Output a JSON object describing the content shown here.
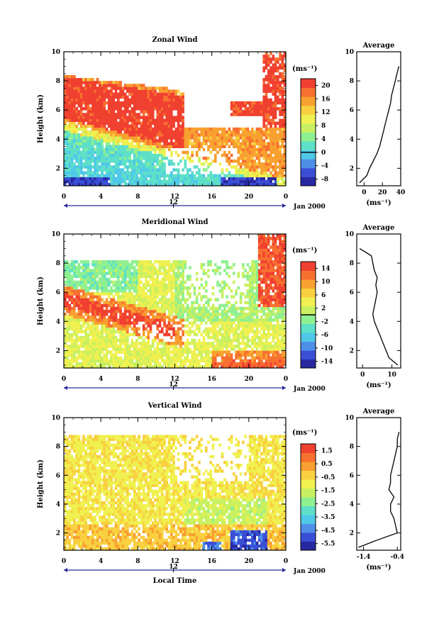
{
  "figure": {
    "x_axis_label": "Local Time",
    "date_label": "Jan 2000",
    "day_marker": "12",
    "x_ticks": [
      "0",
      "4",
      "8",
      "12",
      "16",
      "20",
      "0"
    ],
    "y_ticks": [
      "2",
      "4",
      "6",
      "8",
      "10"
    ],
    "y_label": "Height (km)",
    "avg_title": "Average",
    "unit": "(ms⁻¹)"
  },
  "colors": {
    "palette": [
      "#2828a0",
      "#3a4fd6",
      "#4e8fe8",
      "#4fc8e8",
      "#5ee0c8",
      "#8ef090",
      "#c8f060",
      "#f0f050",
      "#f8d040",
      "#f8a030",
      "#f87030",
      "#f04030"
    ]
  },
  "chart_data": [
    {
      "type": "heatmap",
      "title": "Zonal Wind",
      "xlabel": "",
      "ylabel": "Height (km)",
      "xlim": [
        0,
        24
      ],
      "ylim": [
        0.8,
        10
      ],
      "colorbar_label": "(ms⁻¹)",
      "colorbar_ticks": [
        "20",
        "16",
        "12",
        "8",
        "4",
        "0",
        "-4",
        "-8"
      ],
      "colorbar_range": [
        -10,
        22
      ],
      "contour_level": 0,
      "profile": {
        "title": "Average",
        "xlabel": "(ms⁻¹)",
        "x_ticks": [
          "0",
          "20",
          "40"
        ],
        "xlim": [
          -8,
          40
        ],
        "height": [
          1.0,
          1.5,
          2.0,
          2.5,
          3.0,
          3.5,
          4.0,
          4.5,
          5.0,
          5.5,
          6.0,
          6.5,
          7.0,
          7.5,
          8.0,
          8.5,
          9.0
        ],
        "value": [
          -5,
          3,
          6,
          10,
          14,
          17,
          19,
          21,
          23,
          25,
          27,
          29,
          30,
          32,
          34,
          36,
          38
        ]
      }
    },
    {
      "type": "heatmap",
      "title": "Meridional Wind",
      "xlabel": "",
      "ylabel": "Height (km)",
      "xlim": [
        0,
        24
      ],
      "ylim": [
        0.8,
        10
      ],
      "colorbar_label": "(ms⁻¹)",
      "colorbar_ticks": [
        "14",
        "10",
        "6",
        "2",
        "-2",
        "-6",
        "-10",
        "-14"
      ],
      "colorbar_range": [
        -16,
        16
      ],
      "contour_level": 0,
      "profile": {
        "title": "Average",
        "xlabel": "(ms⁻¹)",
        "x_ticks": [
          "0",
          "10"
        ],
        "xlim": [
          -2,
          13
        ],
        "height": [
          1.0,
          1.5,
          2.0,
          2.5,
          3.0,
          3.5,
          4.0,
          4.5,
          5.0,
          5.5,
          6.0,
          6.5,
          7.0,
          7.5,
          8.0,
          8.5,
          9.0
        ],
        "value": [
          12,
          9,
          8,
          7,
          6,
          5,
          4,
          3.5,
          4,
          4.5,
          5,
          4.5,
          5,
          4,
          3.5,
          3,
          -1
        ]
      }
    },
    {
      "type": "heatmap",
      "title": "Vertical Wind",
      "xlabel": "Local Time",
      "ylabel": "Height (km)",
      "xlim": [
        0,
        24
      ],
      "ylim": [
        0.8,
        10
      ],
      "colorbar_label": "(ms⁻¹)",
      "colorbar_ticks": [
        "1.5",
        "0.5",
        "-0.5",
        "-1.5",
        "-2.5",
        "-3.5",
        "-4.5",
        "-5.5"
      ],
      "colorbar_range": [
        -6,
        2
      ],
      "contour_level": null,
      "profile": {
        "title": "Average",
        "xlabel": "(ms⁻¹)",
        "x_ticks": [
          "-1.4",
          "-0.4"
        ],
        "xlim": [
          -1.6,
          -0.3
        ],
        "height": [
          1.0,
          1.5,
          2.0,
          2.5,
          3.0,
          3.5,
          4.0,
          4.5,
          5.0,
          5.5,
          6.0,
          6.5,
          7.0,
          7.5,
          8.0,
          8.5,
          9.0
        ],
        "value": [
          -1.55,
          -1.0,
          -0.4,
          -0.45,
          -0.5,
          -0.6,
          -0.6,
          -0.5,
          -0.65,
          -0.6,
          -0.6,
          -0.55,
          -0.5,
          -0.45,
          -0.4,
          -0.4,
          -0.35
        ]
      }
    }
  ]
}
